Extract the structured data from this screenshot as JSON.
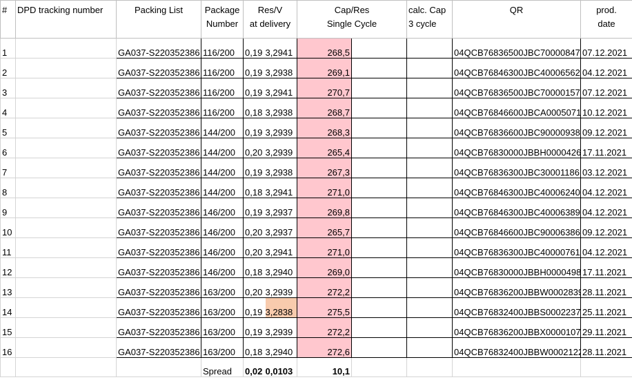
{
  "headers": {
    "num": "#",
    "tracking": "DPD tracking number",
    "packing": "Packing List",
    "package": [
      "Package",
      "Number"
    ],
    "resv": [
      "Res/V",
      "at delivery"
    ],
    "capres": [
      "Cap/Res",
      "Single Cycle"
    ],
    "calccap": [
      "calc. Cap",
      "3 cycle"
    ],
    "qr": "QR",
    "prod": [
      "prod.",
      "date"
    ]
  },
  "colors": {
    "cap_highlight": "#ffc7ce",
    "v_highlight": "#f8cbad",
    "grid": "#d4d4d4"
  },
  "rows": [
    {
      "n": "1",
      "packing": "GA037-S220352386",
      "package": "116/200",
      "res": "0,19",
      "v": "3,2941",
      "cap": "268,5",
      "qr": "04QCB76836500JBC70000847",
      "date": "07.12.2021"
    },
    {
      "n": "2",
      "packing": "GA037-S220352386",
      "package": "116/200",
      "res": "0,19",
      "v": "3,2938",
      "cap": "269,1",
      "qr": "04QCB76846300JBC40006562",
      "date": "04.12.2021"
    },
    {
      "n": "3",
      "packing": "GA037-S220352386",
      "package": "116/200",
      "res": "0,19",
      "v": "3,2941",
      "cap": "270,7",
      "qr": "04QCB76836500JBC70000157",
      "date": "07.12.2021"
    },
    {
      "n": "4",
      "packing": "GA037-S220352386",
      "package": "116/200",
      "res": "0,18",
      "v": "3,2938",
      "cap": "268,7",
      "qr": "04QCB76846600JBCA0005071",
      "date": "10.12.2021"
    },
    {
      "n": "5",
      "packing": "GA037-S220352386",
      "package": "144/200",
      "res": "0,19",
      "v": "3,2939",
      "cap": "268,3",
      "qr": "04QCB76836600JBC90000938",
      "date": "09.12.2021"
    },
    {
      "n": "6",
      "packing": "GA037-S220352386",
      "package": "144/200",
      "res": "0,20",
      "v": "3,2939",
      "cap": "265,4",
      "qr": "04QCB76830000JBBH0000426",
      "date": "17.11.2021"
    },
    {
      "n": "7",
      "packing": "GA037-S220352386",
      "package": "144/200",
      "res": "0,19",
      "v": "3,2938",
      "cap": "267,3",
      "qr": "04QCB76836300JBC30001186",
      "date": "03.12.2021"
    },
    {
      "n": "8",
      "packing": "GA037-S220352386",
      "package": "144/200",
      "res": "0,18",
      "v": "3,2941",
      "cap": "271,0",
      "qr": "04QCB76846300JBC40006240",
      "date": "04.12.2021"
    },
    {
      "n": "9",
      "packing": "GA037-S220352386",
      "package": "146/200",
      "res": "0,19",
      "v": "3,2937",
      "cap": "269,8",
      "qr": "04QCB76846300JBC40006389",
      "date": "04.12.2021"
    },
    {
      "n": "10",
      "packing": "GA037-S220352386",
      "package": "146/200",
      "res": "0,20",
      "v": "3,2937",
      "cap": "265,7",
      "qr": "04QCB76846600JBC90006386",
      "date": "09.12.2021"
    },
    {
      "n": "11",
      "packing": "GA037-S220352386",
      "package": "146/200",
      "res": "0,20",
      "v": "3,2941",
      "cap": "271,0",
      "qr": "04QCB76836300JBC40000761",
      "date": "04.12.2021"
    },
    {
      "n": "12",
      "packing": "GA037-S220352386",
      "package": "146/200",
      "res": "0,18",
      "v": "3,2940",
      "cap": "269,0",
      "qr": "04QCB76830000JBBH0000498",
      "date": "17.11.2021"
    },
    {
      "n": "13",
      "packing": "GA037-S220352386",
      "package": "163/200",
      "res": "0,20",
      "v": "3,2939",
      "cap": "272,2",
      "qr": "04QCB76836200JBBW0002839",
      "date": "28.11.2021"
    },
    {
      "n": "14",
      "packing": "GA037-S220352386",
      "package": "163/200",
      "res": "0,19",
      "v": "3,2838",
      "cap": "275,5",
      "qr": "04QCB76832400JBBS0002237",
      "date": "25.11.2021",
      "v_highlight": true
    },
    {
      "n": "15",
      "packing": "GA037-S220352386",
      "package": "163/200",
      "res": "0,19",
      "v": "3,2939",
      "cap": "272,2",
      "qr": "04QCB76836200JBBX0000107",
      "date": "29.11.2021"
    },
    {
      "n": "16",
      "packing": "GA037-S220352386",
      "package": "163/200",
      "res": "0,18",
      "v": "3,2940",
      "cap": "272,6",
      "qr": "04QCB76832400JBBW0002122",
      "date": "28.11.2021"
    }
  ],
  "footer": {
    "label": "Spread",
    "res": "0,02",
    "v": "0,0103",
    "cap": "10,1"
  }
}
